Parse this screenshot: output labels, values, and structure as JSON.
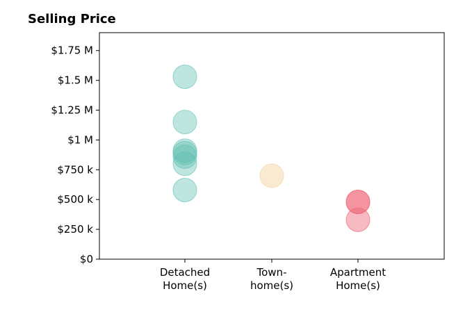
{
  "chart_data": {
    "type": "scatter",
    "title": "Selling Price",
    "xlabel": "",
    "ylabel": "",
    "categories": [
      [
        "Detached",
        "Home(s)"
      ],
      [
        "Town-",
        "home(s)"
      ],
      [
        "Apartment",
        "Home(s)"
      ]
    ],
    "yticks": [
      {
        "value": 0,
        "label": "$0"
      },
      {
        "value": 250000,
        "label": "$250 k"
      },
      {
        "value": 500000,
        "label": "$500 k"
      },
      {
        "value": 750000,
        "label": "$750 k"
      },
      {
        "value": 1000000,
        "label": "$1 M"
      },
      {
        "value": 1250000,
        "label": "$1.25 M"
      },
      {
        "value": 1500000,
        "label": "$1.5 M"
      },
      {
        "value": 1750000,
        "label": "$1.75 M"
      }
    ],
    "ylim": [
      0,
      1900000
    ],
    "series": [
      {
        "category": "Detached Home(s)",
        "color": "#5ebfb0",
        "opacity": 0.4,
        "values": [
          1530000,
          1150000,
          910000,
          890000,
          860000,
          800000,
          580000
        ]
      },
      {
        "category": "Town-home(s)",
        "color": "#f2d29a",
        "opacity": 0.45,
        "values": [
          700000
        ]
      },
      {
        "category": "Apartment Home(s)",
        "color": "#ee6677",
        "opacity": 0.45,
        "values": [
          480000,
          480000,
          330000
        ]
      }
    ],
    "grid": false,
    "legend": "none"
  }
}
